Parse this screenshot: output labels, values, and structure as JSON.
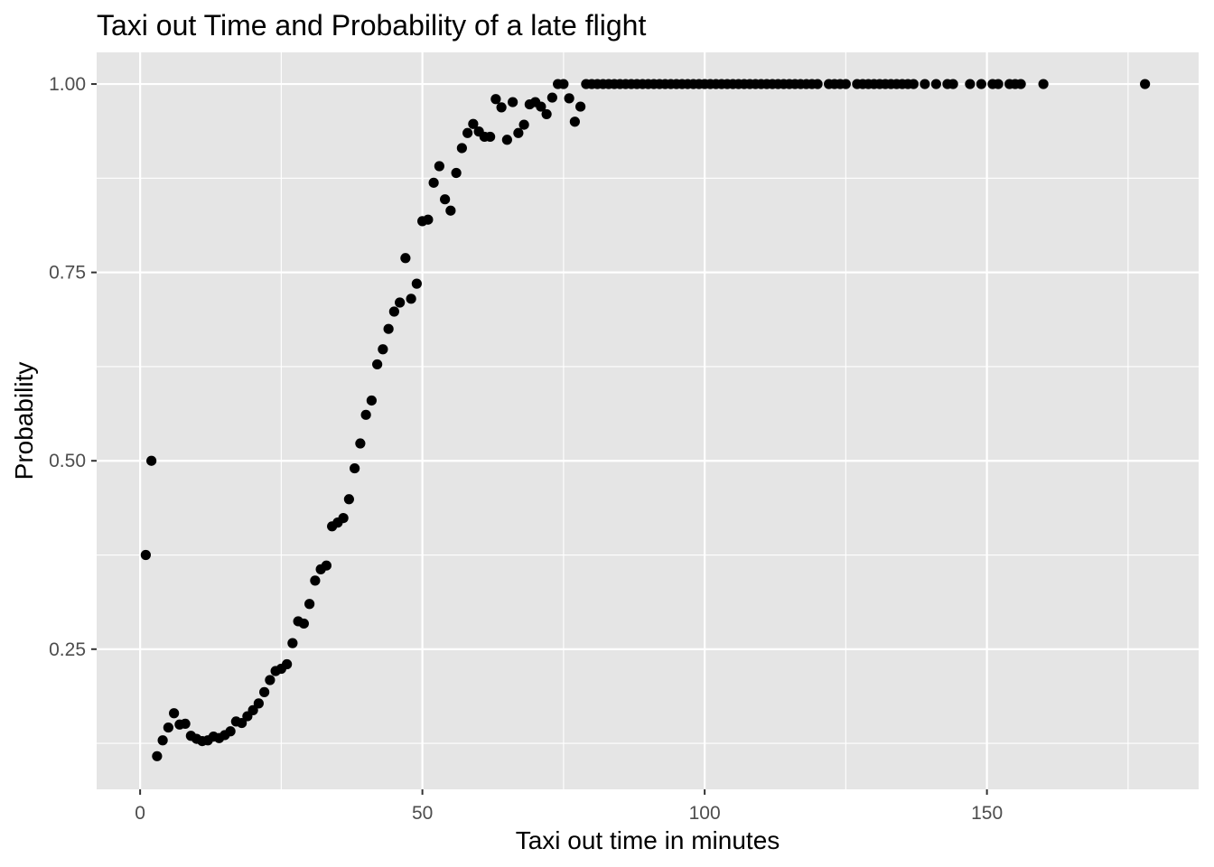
{
  "chart_data": {
    "type": "scatter",
    "title": "Taxi out Time and Probability of a late flight",
    "xlabel": "Taxi out time in minutes",
    "ylabel": "Probability",
    "xlim": [
      -7.7,
      187.5
    ],
    "ylim": [
      0.064,
      1.042
    ],
    "x_ticks": [
      0,
      50,
      100,
      150
    ],
    "x_tick_labels": [
      "0",
      "50",
      "100",
      "150"
    ],
    "y_ticks": [
      0.25,
      0.5,
      0.75,
      1.0
    ],
    "y_tick_labels": [
      "0.25",
      "0.50",
      "0.75",
      "1.00"
    ],
    "grid": true,
    "panel_background": "#e5e5e5",
    "grid_color": "#ffffff",
    "point_color": "#000000",
    "points": [
      [
        1,
        0.375
      ],
      [
        2,
        0.5
      ],
      [
        3,
        0.108
      ],
      [
        4,
        0.129
      ],
      [
        5,
        0.146
      ],
      [
        6,
        0.165
      ],
      [
        7,
        0.15
      ],
      [
        8,
        0.151
      ],
      [
        9,
        0.135
      ],
      [
        10,
        0.131
      ],
      [
        11,
        0.128
      ],
      [
        12,
        0.129
      ],
      [
        13,
        0.134
      ],
      [
        14,
        0.132
      ],
      [
        15,
        0.136
      ],
      [
        16,
        0.141
      ],
      [
        17,
        0.154
      ],
      [
        18,
        0.152
      ],
      [
        19,
        0.161
      ],
      [
        20,
        0.169
      ],
      [
        21,
        0.178
      ],
      [
        22,
        0.193
      ],
      [
        23,
        0.209
      ],
      [
        24,
        0.221
      ],
      [
        25,
        0.224
      ],
      [
        26,
        0.23
      ],
      [
        27,
        0.258
      ],
      [
        28,
        0.287
      ],
      [
        29,
        0.284
      ],
      [
        30,
        0.31
      ],
      [
        31,
        0.341
      ],
      [
        32,
        0.356
      ],
      [
        33,
        0.361
      ],
      [
        34,
        0.413
      ],
      [
        35,
        0.418
      ],
      [
        36,
        0.424
      ],
      [
        37,
        0.449
      ],
      [
        38,
        0.49
      ],
      [
        39,
        0.523
      ],
      [
        40,
        0.561
      ],
      [
        41,
        0.58
      ],
      [
        42,
        0.628
      ],
      [
        43,
        0.648
      ],
      [
        44,
        0.675
      ],
      [
        45,
        0.698
      ],
      [
        46,
        0.71
      ],
      [
        47,
        0.769
      ],
      [
        48,
        0.715
      ],
      [
        49,
        0.735
      ],
      [
        50,
        0.818
      ],
      [
        51,
        0.82
      ],
      [
        52,
        0.869
      ],
      [
        53,
        0.891
      ],
      [
        54,
        0.847
      ],
      [
        55,
        0.832
      ],
      [
        56,
        0.882
      ],
      [
        57,
        0.915
      ],
      [
        58,
        0.935
      ],
      [
        59,
        0.947
      ],
      [
        60,
        0.937
      ],
      [
        61,
        0.93
      ],
      [
        62,
        0.93
      ],
      [
        63,
        0.98
      ],
      [
        64,
        0.969
      ],
      [
        65,
        0.926
      ],
      [
        66,
        0.976
      ],
      [
        67,
        0.935
      ],
      [
        68,
        0.946
      ],
      [
        69,
        0.973
      ],
      [
        70,
        0.976
      ],
      [
        71,
        0.97
      ],
      [
        72,
        0.96
      ],
      [
        73,
        0.982
      ],
      [
        74,
        1.0
      ],
      [
        75,
        1.0
      ],
      [
        76,
        0.981
      ],
      [
        77,
        0.95
      ],
      [
        78,
        0.97
      ],
      [
        79,
        1.0
      ],
      [
        80,
        1.0
      ],
      [
        81,
        1.0
      ],
      [
        82,
        1.0
      ],
      [
        83,
        1.0
      ],
      [
        84,
        1.0
      ],
      [
        85,
        1.0
      ],
      [
        86,
        1.0
      ],
      [
        87,
        1.0
      ],
      [
        88,
        1.0
      ],
      [
        89,
        1.0
      ],
      [
        90,
        1.0
      ],
      [
        91,
        1.0
      ],
      [
        92,
        1.0
      ],
      [
        93,
        1.0
      ],
      [
        94,
        1.0
      ],
      [
        95,
        1.0
      ],
      [
        96,
        1.0
      ],
      [
        97,
        1.0
      ],
      [
        98,
        1.0
      ],
      [
        99,
        1.0
      ],
      [
        100,
        1.0
      ],
      [
        101,
        1.0
      ],
      [
        102,
        1.0
      ],
      [
        103,
        1.0
      ],
      [
        104,
        1.0
      ],
      [
        105,
        1.0
      ],
      [
        106,
        1.0
      ],
      [
        107,
        1.0
      ],
      [
        108,
        1.0
      ],
      [
        109,
        1.0
      ],
      [
        110,
        1.0
      ],
      [
        111,
        1.0
      ],
      [
        112,
        1.0
      ],
      [
        113,
        1.0
      ],
      [
        114,
        1.0
      ],
      [
        115,
        1.0
      ],
      [
        116,
        1.0
      ],
      [
        117,
        1.0
      ],
      [
        118,
        1.0
      ],
      [
        119,
        1.0
      ],
      [
        120,
        1.0
      ],
      [
        122,
        1.0
      ],
      [
        123,
        1.0
      ],
      [
        124,
        1.0
      ],
      [
        125,
        1.0
      ],
      [
        127,
        1.0
      ],
      [
        128,
        1.0
      ],
      [
        129,
        1.0
      ],
      [
        130,
        1.0
      ],
      [
        131,
        1.0
      ],
      [
        132,
        1.0
      ],
      [
        133,
        1.0
      ],
      [
        134,
        1.0
      ],
      [
        135,
        1.0
      ],
      [
        136,
        1.0
      ],
      [
        137,
        1.0
      ],
      [
        139,
        1.0
      ],
      [
        141,
        1.0
      ],
      [
        143,
        1.0
      ],
      [
        144,
        1.0
      ],
      [
        147,
        1.0
      ],
      [
        149,
        1.0
      ],
      [
        151,
        1.0
      ],
      [
        152,
        1.0
      ],
      [
        154,
        1.0
      ],
      [
        155,
        1.0
      ],
      [
        156,
        1.0
      ],
      [
        160,
        1.0
      ],
      [
        178,
        1.0
      ]
    ]
  }
}
